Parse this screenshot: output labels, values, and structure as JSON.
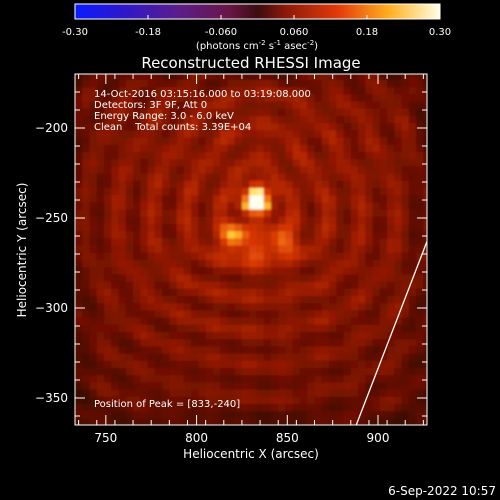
{
  "colorbar": {
    "ticks": [
      "-0.30",
      "-0.18",
      "-0.060",
      "0.060",
      "0.18",
      "0.30"
    ],
    "units_main": "(photons cm",
    "units_exp1": "-2",
    "units_s": " s",
    "units_exp2": "-1",
    "units_asec": " asec",
    "units_exp3": "-2",
    "units_close": ")"
  },
  "chart_data": {
    "type": "heatmap",
    "title": "Reconstructed RHESSI Image",
    "xlabel": "Heliocentric X (arcsec)",
    "ylabel": "Heliocentric Y (arcsec)",
    "xlim": [
      733,
      927
    ],
    "ylim": [
      -365,
      -170
    ],
    "x_ticks": [
      750,
      800,
      850,
      900
    ],
    "y_ticks": [
      -200,
      -250,
      -300,
      -350
    ],
    "x_tick_labels": [
      "750",
      "800",
      "850",
      "900"
    ],
    "y_tick_labels": [
      "−200",
      "−250",
      "−300",
      "−350"
    ],
    "colorbar_range": [
      -0.3,
      0.3
    ],
    "colormap": "hot",
    "peak": [
      833,
      -240
    ],
    "sources": [
      {
        "x": 833,
        "y": -240,
        "intensity": 0.3
      },
      {
        "x": 820,
        "y": -261,
        "intensity": 0.17
      },
      {
        "x": 848,
        "y": -263,
        "intensity": 0.14
      },
      {
        "x": 833,
        "y": -268,
        "intensity": 0.1
      }
    ],
    "limb_line": [
      [
        888,
        -365
      ],
      [
        927,
        -263
      ]
    ],
    "annotations": {
      "time": "14-Oct-2016 03:15:16.000 to 03:19:08.000",
      "detectors": "Detectors: 3F 9F, Att 0",
      "energy": "Energy Range: 3.0 - 6.0 keV",
      "clean": "Clean    Total counts: 3.39E+04",
      "peak": "Position of Peak = [833,-240]"
    }
  },
  "footer": {
    "date": "6-Sep-2022 10:57"
  }
}
